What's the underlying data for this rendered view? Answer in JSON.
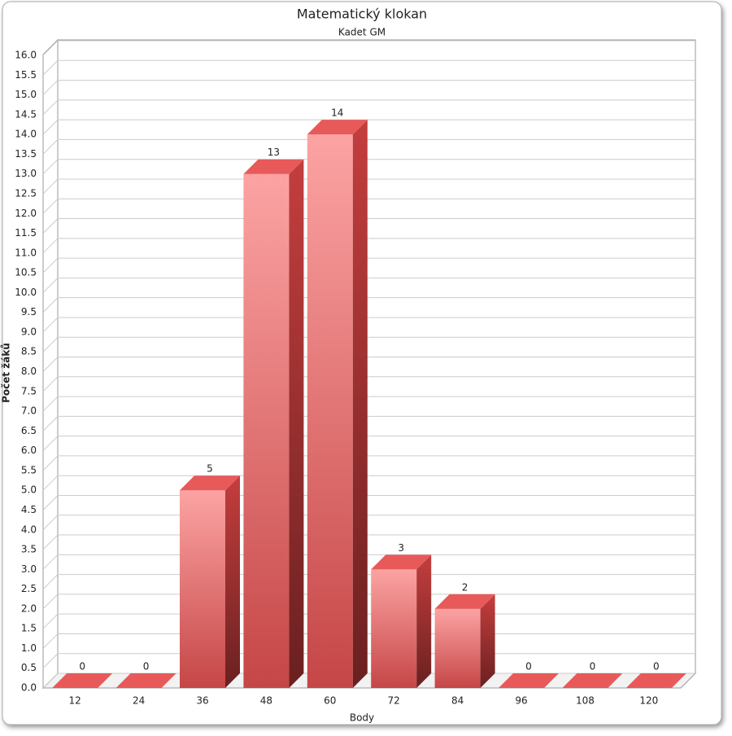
{
  "chart_data": {
    "type": "bar3d",
    "title": "Matematický klokan",
    "subtitle": "Kadet GM",
    "x_label": "Body",
    "y_label": "Počet žáků",
    "categories": [
      "12",
      "24",
      "36",
      "48",
      "60",
      "72",
      "84",
      "96",
      "108",
      "120"
    ],
    "values": [
      0,
      0,
      5,
      13,
      14,
      3,
      2,
      0,
      0,
      0
    ],
    "color": "#e85a5a",
    "ylim": [
      0,
      16
    ],
    "yticks": [
      {
        "value": 0,
        "label": "0.0"
      },
      0.5,
      {
        "value": 1,
        "label": "1.0"
      },
      1.5,
      {
        "value": 2,
        "label": "2.0"
      },
      2.5,
      {
        "value": 3,
        "label": "3.0"
      },
      3.5,
      {
        "value": 4,
        "label": "4.0"
      },
      4.5,
      {
        "value": 5,
        "label": "5.0"
      },
      5.5,
      {
        "value": 6,
        "label": "6.0"
      },
      6.5,
      {
        "value": 7,
        "label": "7.0"
      },
      7.5,
      {
        "value": 8,
        "label": "8.0"
      },
      8.5,
      {
        "value": 9,
        "label": "9.0"
      },
      9.5,
      {
        "value": 10,
        "label": "10.0"
      },
      10.5,
      {
        "value": 11,
        "label": "11.0"
      },
      11.5,
      {
        "value": 12,
        "label": "12.0"
      },
      12.5,
      {
        "value": 13,
        "label": "13.0"
      },
      13.5,
      {
        "value": 14,
        "label": "14.0"
      },
      14.5,
      {
        "value": 15,
        "label": "15.0"
      },
      15.5,
      {
        "value": 16,
        "label": "16.0"
      }
    ],
    "grid": true
  }
}
